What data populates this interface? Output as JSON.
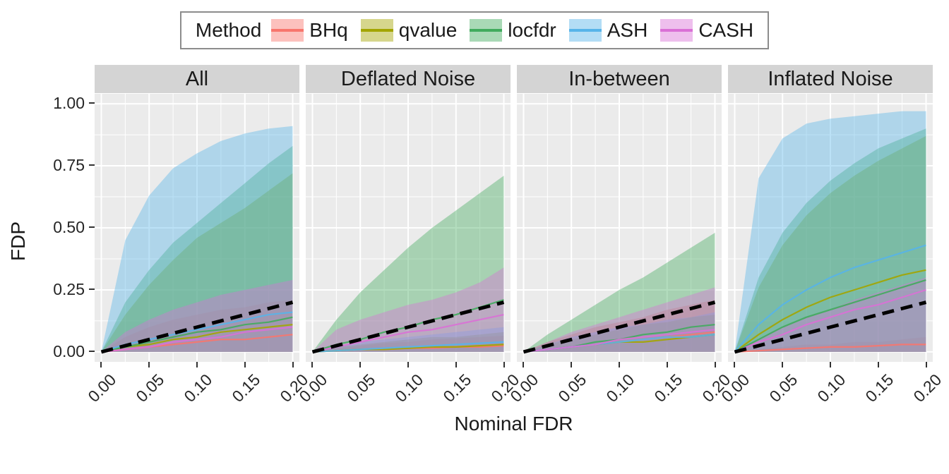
{
  "legend": {
    "title": "Method",
    "items": [
      {
        "label": "BHq",
        "color": "#F8766D"
      },
      {
        "label": "qvalue",
        "color": "#A3A500"
      },
      {
        "label": "locfdr",
        "color": "#41AB5D"
      },
      {
        "label": "ASH",
        "color": "#56B4E9"
      },
      {
        "label": "CASH",
        "color": "#DA70D6"
      }
    ]
  },
  "axes": {
    "x_label": "Nominal FDR",
    "y_label": "FDP",
    "x_tick_labels": [
      "0.00",
      "0.05",
      "0.10",
      "0.15",
      "0.20"
    ],
    "x_tick_values": [
      0,
      0.05,
      0.1,
      0.15,
      0.2
    ],
    "x_minor": [
      0.025,
      0.075,
      0.125,
      0.175
    ],
    "y_tick_labels": [
      "0.00",
      "0.25",
      "0.50",
      "0.75",
      "1.00"
    ],
    "y_tick_values": [
      0,
      0.25,
      0.5,
      0.75,
      1.0
    ],
    "y_minor": [
      0.125,
      0.375,
      0.625,
      0.875
    ],
    "x_domain": [
      -0.007,
      0.207
    ],
    "y_domain": [
      -0.04,
      1.04
    ]
  },
  "styles": {
    "panel_bg": "#EBEBEB",
    "strip_bg": "#D4D4D4",
    "grid_color": "#FFFFFF",
    "ribbon_alpha": 0.4,
    "reference_color": "#000000"
  },
  "chart_data": {
    "type": "area",
    "title": "",
    "xlabel": "Nominal FDR",
    "ylabel": "FDP",
    "xlim": [
      0,
      0.2
    ],
    "ylim": [
      0,
      1.0
    ],
    "x": [
      0,
      0.025,
      0.05,
      0.075,
      0.1,
      0.125,
      0.15,
      0.175,
      0.2
    ],
    "draw_order": [
      "BHq",
      "qvalue",
      "locfdr",
      "ASH",
      "CASH"
    ],
    "reference_line": {
      "style": "dashed",
      "from": [
        0,
        0
      ],
      "to": [
        0.2,
        0.2
      ],
      "color": "#000000"
    },
    "facets": [
      {
        "title": "All",
        "series": [
          {
            "name": "BHq",
            "upper": [
              0,
              0.06,
              0.1,
              0.13,
              0.15,
              0.17,
              0.18,
              0.2,
              0.21
            ],
            "mean": [
              0,
              0.01,
              0.02,
              0.03,
              0.04,
              0.05,
              0.05,
              0.06,
              0.07
            ]
          },
          {
            "name": "qvalue",
            "upper": [
              0,
              0.15,
              0.27,
              0.37,
              0.46,
              0.52,
              0.58,
              0.65,
              0.72
            ],
            "mean": [
              0,
              0.02,
              0.03,
              0.05,
              0.06,
              0.08,
              0.09,
              0.1,
              0.11
            ]
          },
          {
            "name": "locfdr",
            "upper": [
              0,
              0.2,
              0.33,
              0.44,
              0.52,
              0.6,
              0.68,
              0.76,
              0.83
            ],
            "mean": [
              0,
              0.02,
              0.04,
              0.06,
              0.08,
              0.09,
              0.11,
              0.12,
              0.14
            ]
          },
          {
            "name": "ASH",
            "upper": [
              0,
              0.45,
              0.63,
              0.74,
              0.8,
              0.85,
              0.88,
              0.9,
              0.91
            ],
            "mean": [
              0,
              0.03,
              0.05,
              0.07,
              0.09,
              0.11,
              0.13,
              0.15,
              0.16
            ]
          },
          {
            "name": "CASH",
            "upper": [
              0,
              0.08,
              0.13,
              0.17,
              0.2,
              0.23,
              0.25,
              0.27,
              0.29
            ],
            "mean": [
              0,
              0.01,
              0.02,
              0.04,
              0.05,
              0.06,
              0.08,
              0.09,
              0.1
            ]
          }
        ]
      },
      {
        "title": "Deflated Noise",
        "series": [
          {
            "name": "BHq",
            "upper": [
              0,
              0.015,
              0.025,
              0.035,
              0.04,
              0.05,
              0.055,
              0.06,
              0.065
            ],
            "mean": [
              0,
              0.005,
              0.01,
              0.01,
              0.015,
              0.015,
              0.02,
              0.02,
              0.025
            ]
          },
          {
            "name": "qvalue",
            "upper": [
              0,
              0.02,
              0.03,
              0.04,
              0.05,
              0.06,
              0.06,
              0.07,
              0.08
            ],
            "mean": [
              0,
              0.005,
              0.01,
              0.01,
              0.015,
              0.02,
              0.02,
              0.025,
              0.03
            ]
          },
          {
            "name": "locfdr",
            "upper": [
              0,
              0.13,
              0.24,
              0.33,
              0.42,
              0.5,
              0.57,
              0.64,
              0.71
            ],
            "mean": [
              0,
              0.03,
              0.05,
              0.08,
              0.1,
              0.13,
              0.15,
              0.18,
              0.21
            ]
          },
          {
            "name": "ASH",
            "upper": [
              0,
              0.02,
              0.04,
              0.05,
              0.06,
              0.07,
              0.08,
              0.09,
              0.1
            ],
            "mean": [
              0,
              0.005,
              0.01,
              0.015,
              0.02,
              0.025,
              0.03,
              0.035,
              0.04
            ]
          },
          {
            "name": "CASH",
            "upper": [
              0,
              0.09,
              0.13,
              0.16,
              0.19,
              0.21,
              0.24,
              0.28,
              0.34
            ],
            "mean": [
              0,
              0.02,
              0.04,
              0.06,
              0.08,
              0.09,
              0.11,
              0.13,
              0.15
            ]
          }
        ]
      },
      {
        "title": "In-between",
        "series": [
          {
            "name": "BHq",
            "upper": [
              0,
              0.04,
              0.07,
              0.1,
              0.12,
              0.14,
              0.17,
              0.19,
              0.21
            ],
            "mean": [
              0,
              0.01,
              0.02,
              0.03,
              0.04,
              0.05,
              0.06,
              0.07,
              0.08
            ]
          },
          {
            "name": "qvalue",
            "upper": [
              0,
              0.03,
              0.05,
              0.07,
              0.09,
              0.11,
              0.12,
              0.14,
              0.15
            ],
            "mean": [
              0,
              0.01,
              0.02,
              0.03,
              0.04,
              0.04,
              0.05,
              0.06,
              0.07
            ]
          },
          {
            "name": "locfdr",
            "upper": [
              0,
              0.07,
              0.13,
              0.19,
              0.25,
              0.3,
              0.36,
              0.42,
              0.48
            ],
            "mean": [
              0,
              0.01,
              0.02,
              0.04,
              0.05,
              0.07,
              0.08,
              0.1,
              0.11
            ]
          },
          {
            "name": "ASH",
            "upper": [
              0,
              0.03,
              0.06,
              0.08,
              0.1,
              0.11,
              0.13,
              0.14,
              0.16
            ],
            "mean": [
              0,
              0.01,
              0.02,
              0.03,
              0.04,
              0.05,
              0.06,
              0.06,
              0.07
            ]
          },
          {
            "name": "CASH",
            "upper": [
              0,
              0.04,
              0.08,
              0.11,
              0.14,
              0.17,
              0.2,
              0.23,
              0.26
            ],
            "mean": [
              0,
              0.01,
              0.02,
              0.03,
              0.05,
              0.06,
              0.07,
              0.08,
              0.09
            ]
          }
        ]
      },
      {
        "title": "Inflated Noise",
        "series": [
          {
            "name": "BHq",
            "upper": [
              0,
              0.01,
              0.02,
              0.03,
              0.03,
              0.04,
              0.04,
              0.05,
              0.06
            ],
            "mean": [
              0,
              0.005,
              0.01,
              0.015,
              0.02,
              0.02,
              0.025,
              0.03,
              0.03
            ]
          },
          {
            "name": "qvalue",
            "upper": [
              0,
              0.26,
              0.43,
              0.55,
              0.64,
              0.71,
              0.77,
              0.82,
              0.87
            ],
            "mean": [
              0,
              0.07,
              0.13,
              0.18,
              0.22,
              0.25,
              0.28,
              0.31,
              0.33
            ]
          },
          {
            "name": "locfdr",
            "upper": [
              0,
              0.3,
              0.48,
              0.6,
              0.69,
              0.76,
              0.82,
              0.86,
              0.9
            ],
            "mean": [
              0,
              0.05,
              0.1,
              0.14,
              0.17,
              0.2,
              0.23,
              0.26,
              0.29
            ]
          },
          {
            "name": "ASH",
            "upper": [
              0,
              0.7,
              0.86,
              0.92,
              0.94,
              0.95,
              0.96,
              0.97,
              0.97
            ],
            "mean": [
              0,
              0.11,
              0.19,
              0.25,
              0.3,
              0.34,
              0.37,
              0.4,
              0.43
            ]
          },
          {
            "name": "CASH",
            "upper": [
              0,
              0.05,
              0.1,
              0.14,
              0.17,
              0.21,
              0.24,
              0.27,
              0.3
            ],
            "mean": [
              0,
              0.04,
              0.07,
              0.11,
              0.14,
              0.17,
              0.19,
              0.22,
              0.25
            ]
          }
        ]
      }
    ]
  }
}
